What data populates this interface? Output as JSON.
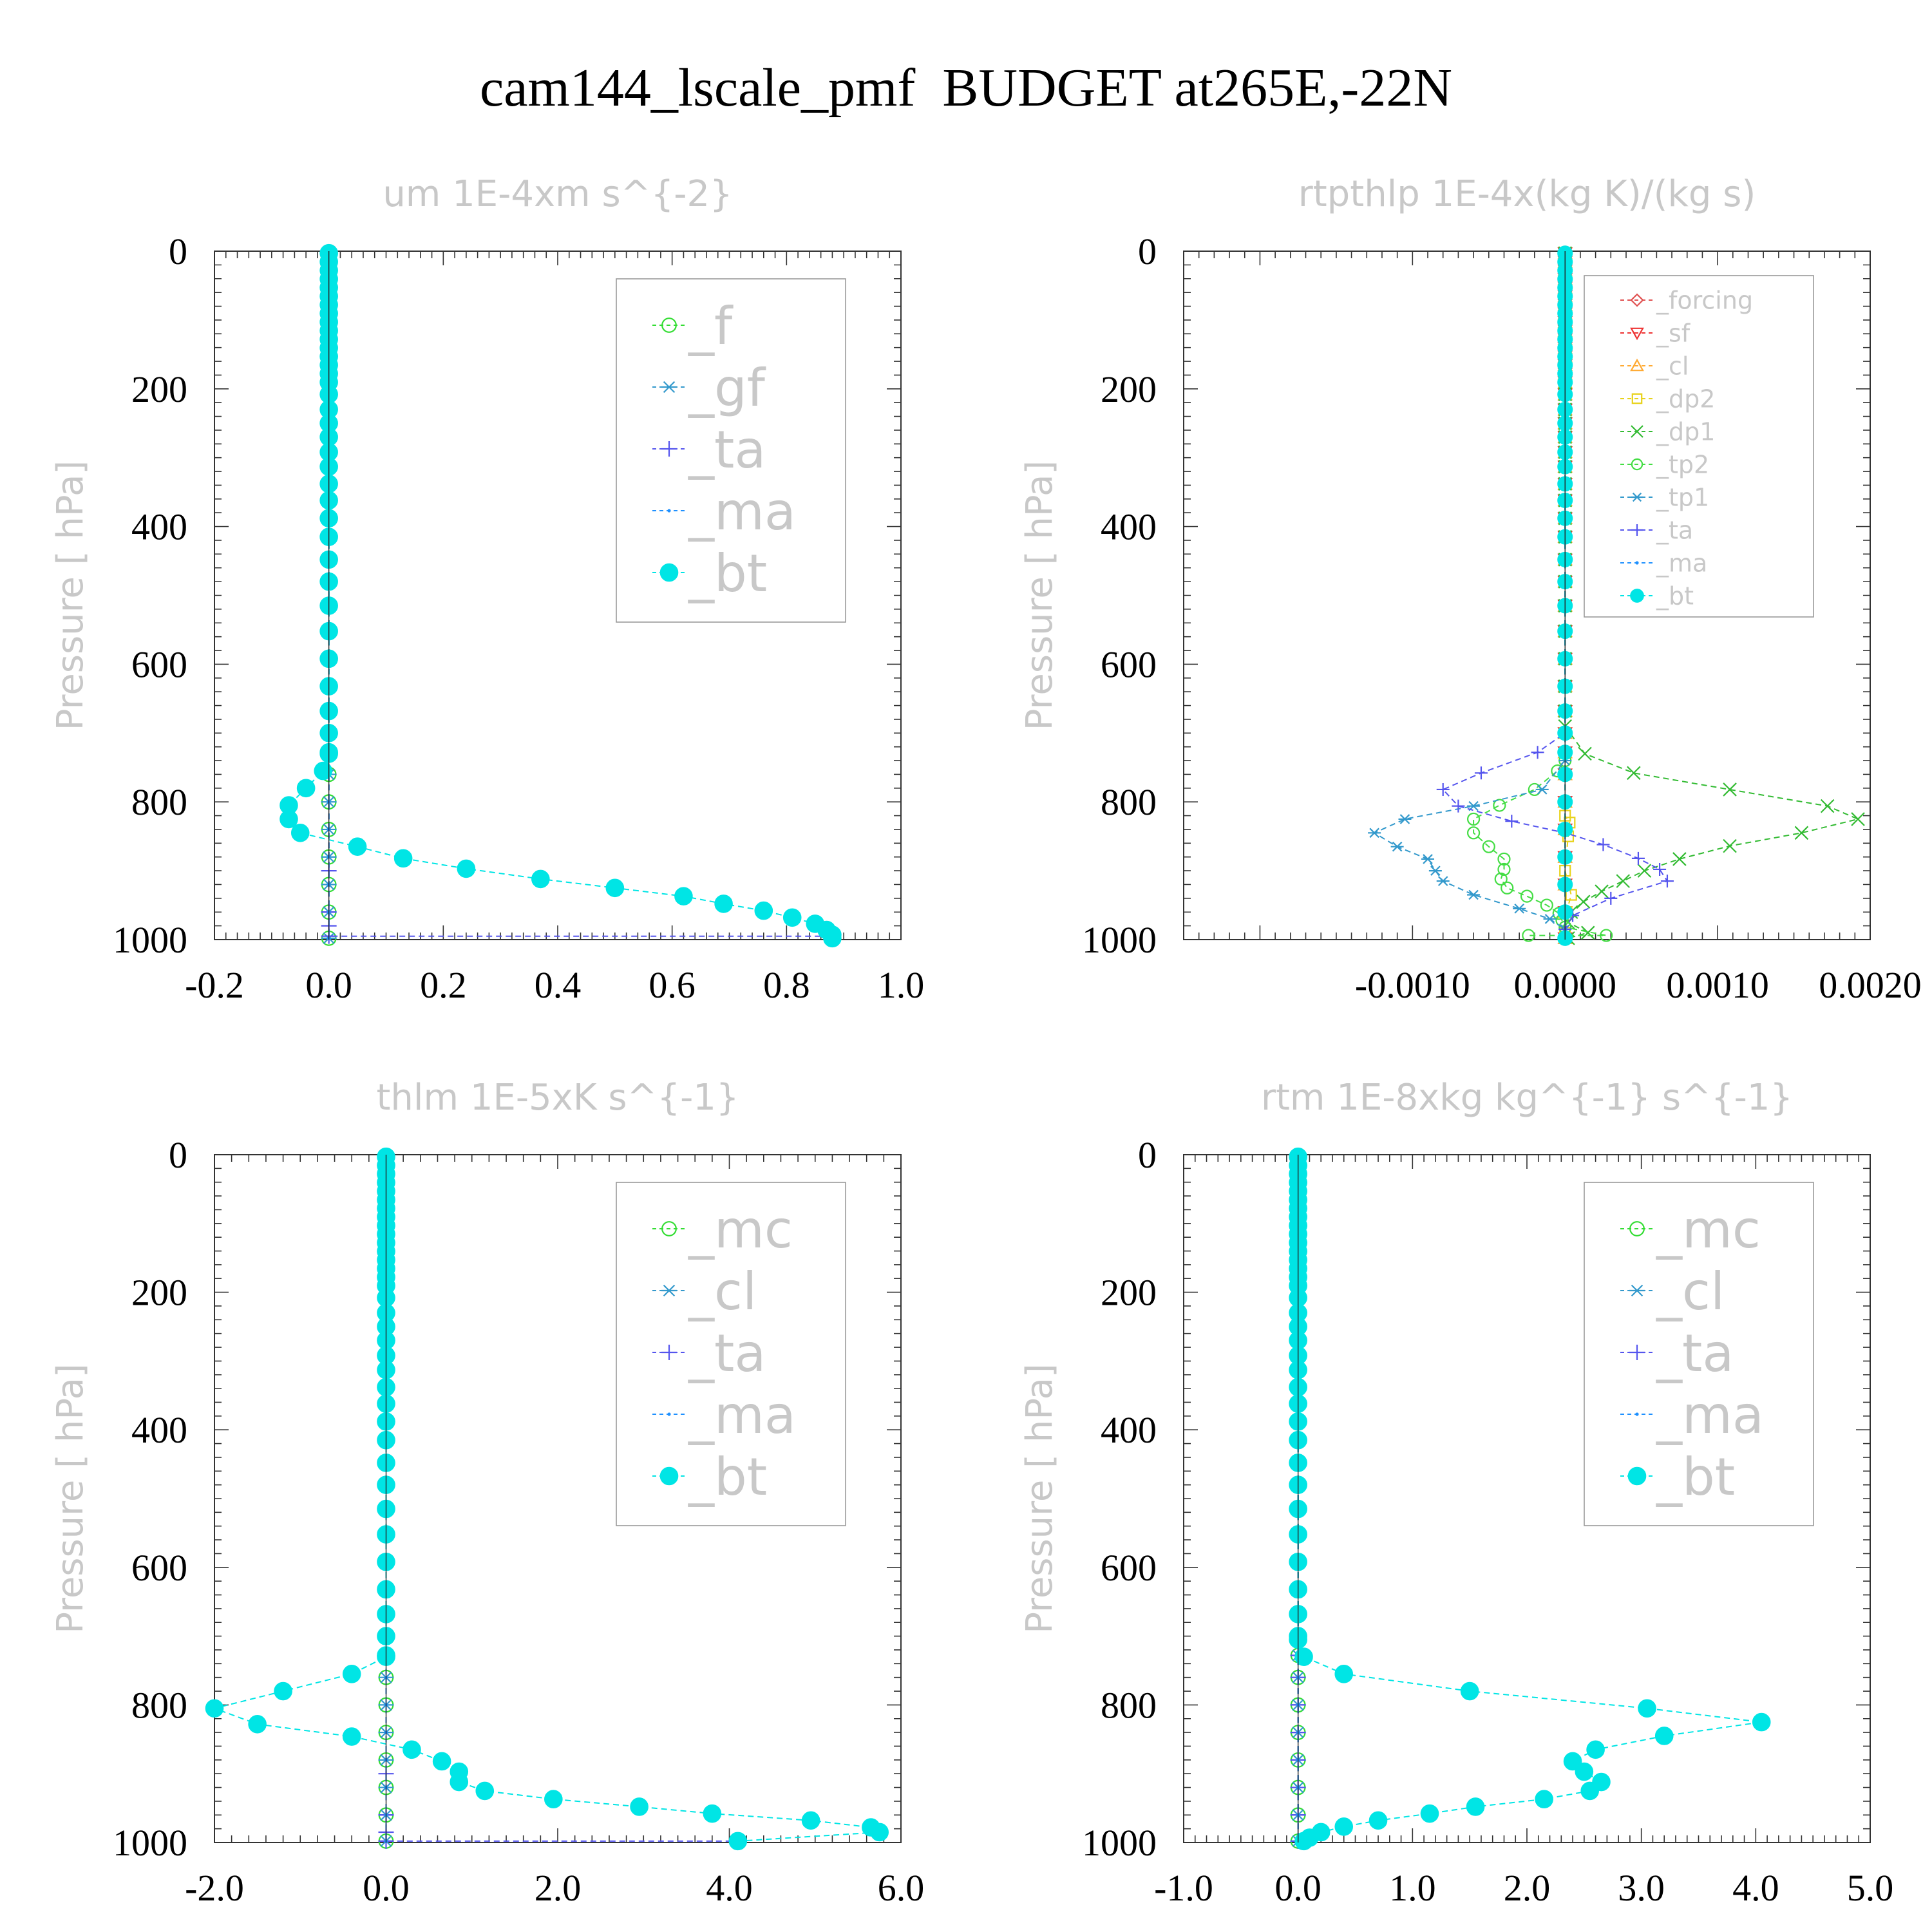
{
  "figure_title": "cam144_lscale_pmf  BUDGET at265E,-22N",
  "chart_data": [
    {
      "type": "line",
      "title": "um  1E-4xm s^{-2}",
      "ylabel": "Pressure [ hPa]",
      "xlabel": "",
      "xlim": [
        -0.2,
        1.0
      ],
      "ylim": [
        1000,
        0
      ],
      "y_inverted": true,
      "xticks": [
        "-0.2",
        "0.0",
        "0.2",
        "0.4",
        "0.6",
        "0.8",
        "1.0"
      ],
      "yticks": [
        "0",
        "200",
        "400",
        "600",
        "800",
        "1000"
      ],
      "legend_position": "upper-right",
      "grid": false,
      "series": [
        {
          "name": "_f",
          "color": "#33dd33",
          "marker": "circle-open",
          "bands": [
            [
              0.0,
              0.0,
              0.0
            ]
          ]
        },
        {
          "name": "_gf",
          "color": "#3399cc",
          "marker": "asterisk",
          "bands": [
            [
              0.0,
              0.0,
              0.0
            ]
          ]
        },
        {
          "name": "_ta",
          "color": "#5555ee",
          "marker": "plus",
          "bands": [
            [
              0.0,
              0.0,
              0.0
            ]
          ],
          "points": [
            [
              0.0,
              900
            ],
            [
              0.0,
              960
            ],
            [
              0.0,
              980
            ],
            [
              0.0,
              995
            ],
            [
              0.88,
              995
            ]
          ]
        },
        {
          "name": "_ma",
          "color": "#1e90ff",
          "marker": "dot",
          "bands": [
            [
              0.0,
              0.0,
              0.0
            ]
          ]
        },
        {
          "name": "_bt",
          "color": "#00e5e5",
          "marker": "filled-circle",
          "bands": [
            [
              0.0,
              0.0,
              0.0
            ]
          ],
          "points": [
            [
              0.0,
              730
            ],
            [
              -0.01,
              755
            ],
            [
              -0.04,
              780
            ],
            [
              -0.07,
              805
            ],
            [
              -0.07,
              825
            ],
            [
              -0.05,
              845
            ],
            [
              0.05,
              865
            ],
            [
              0.13,
              882
            ],
            [
              0.24,
              897
            ],
            [
              0.37,
              912
            ],
            [
              0.5,
              925
            ],
            [
              0.62,
              937
            ],
            [
              0.69,
              948
            ],
            [
              0.76,
              958
            ],
            [
              0.81,
              968
            ],
            [
              0.85,
              977
            ],
            [
              0.87,
              986
            ],
            [
              0.88,
              993
            ],
            [
              0.88,
              998
            ]
          ]
        }
      ]
    },
    {
      "type": "line",
      "title": "rtpthlp  1E-4x(kg K)/(kg s)",
      "ylabel": "Pressure [ hPa]",
      "xlabel": "",
      "xlim": [
        -0.0025,
        0.002
      ],
      "ylim": [
        1000,
        0
      ],
      "y_inverted": true,
      "xticks": [
        "-0.0010",
        "0.0000",
        "0.0010",
        "0.0020"
      ],
      "yticks": [
        "0",
        "200",
        "400",
        "600",
        "800",
        "1000"
      ],
      "legend_position": "upper-right",
      "grid": false,
      "series": [
        {
          "name": "_forcing",
          "color": "#e05050",
          "marker": "diamond-open",
          "bands": [
            [
              0.0,
              0.0,
              0.0
            ]
          ]
        },
        {
          "name": "_sf",
          "color": "#ee3333",
          "marker": "triangle-down",
          "bands": [
            [
              0.0,
              0.0,
              0.0
            ]
          ]
        },
        {
          "name": "_cl",
          "color": "#ffaa33",
          "marker": "triangle-up",
          "bands": [
            [
              0.0,
              0.0,
              0.0
            ]
          ]
        },
        {
          "name": "_dp2",
          "color": "#e8d21a",
          "marker": "square-open",
          "bands": [
            [
              0.0,
              0.0,
              0.0
            ]
          ],
          "points": [
            [
              0.0,
              700
            ],
            [
              0.0,
              820
            ],
            [
              3e-05,
              830
            ],
            [
              2e-05,
              850
            ],
            [
              0.0,
              900
            ],
            [
              4e-05,
              935
            ],
            [
              1e-05,
              960
            ],
            [
              0.0,
              990
            ]
          ]
        },
        {
          "name": "_dp1",
          "color": "#33bb33",
          "marker": "cross",
          "bands": [
            [
              0.0,
              0.0,
              0.0
            ]
          ],
          "points": [
            [
              0.0,
              690
            ],
            [
              0.00013,
              730
            ],
            [
              0.00045,
              758
            ],
            [
              0.00108,
              782
            ],
            [
              0.00172,
              806
            ],
            [
              0.00192,
              825
            ],
            [
              0.00155,
              845
            ],
            [
              0.00108,
              864
            ],
            [
              0.00075,
              883
            ],
            [
              0.00052,
              900
            ],
            [
              0.00038,
              915
            ],
            [
              0.00024,
              930
            ],
            [
              0.00012,
              945
            ],
            [
              4e-05,
              960
            ],
            [
              2e-05,
              975
            ],
            [
              0.00015,
              990
            ],
            [
              2e-05,
              998
            ]
          ]
        },
        {
          "name": "_tp2",
          "color": "#44dd44",
          "marker": "circle-open",
          "bands": [
            [
              0.0,
              0.0,
              0.0
            ]
          ],
          "points": [
            [
              0.0,
              740
            ],
            [
              -5e-05,
              755
            ],
            [
              -0.0002,
              782
            ],
            [
              -0.00043,
              805
            ],
            [
              -0.0006,
              825
            ],
            [
              -0.0006,
              845
            ],
            [
              -0.0005,
              865
            ],
            [
              -0.0004,
              883
            ],
            [
              -0.0004,
              898
            ],
            [
              -0.00042,
              912
            ],
            [
              -0.00038,
              925
            ],
            [
              -0.00025,
              937
            ],
            [
              -0.00012,
              950
            ],
            [
              -4e-05,
              962
            ],
            [
              -2e-05,
              972
            ],
            [
              0.0,
              982
            ],
            [
              0.00027,
              994
            ],
            [
              -0.00024,
              994
            ]
          ]
        },
        {
          "name": "_tp1",
          "color": "#3399cc",
          "marker": "asterisk",
          "bands": [
            [
              0.0,
              0.0,
              0.0
            ]
          ],
          "points": [
            [
              0.0,
              740
            ],
            [
              -0.00015,
              782
            ],
            [
              -0.0006,
              806
            ],
            [
              -0.00105,
              825
            ],
            [
              -0.00125,
              845
            ],
            [
              -0.0011,
              865
            ],
            [
              -0.0009,
              883
            ],
            [
              -0.00085,
              900
            ],
            [
              -0.0008,
              915
            ],
            [
              -0.0006,
              935
            ],
            [
              -0.0003,
              955
            ],
            [
              -0.0001,
              970
            ],
            [
              0.0,
              985
            ],
            [
              0.0,
              998
            ]
          ]
        },
        {
          "name": "_ta",
          "color": "#5555ee",
          "marker": "plus",
          "bands": [
            [
              0.0,
              0.0,
              0.0
            ]
          ],
          "points": [
            [
              0.0,
              700
            ],
            [
              -0.00018,
              728
            ],
            [
              -0.00055,
              758
            ],
            [
              -0.0008,
              782
            ],
            [
              -0.0007,
              806
            ],
            [
              -0.00035,
              828
            ],
            [
              0.0,
              845
            ],
            [
              0.00025,
              862
            ],
            [
              0.00048,
              882
            ],
            [
              0.00062,
              898
            ],
            [
              0.00067,
              915
            ],
            [
              0.0003,
              940
            ],
            [
              5e-05,
              965
            ],
            [
              0.0,
              985
            ]
          ]
        },
        {
          "name": "_ma",
          "color": "#1e90ff",
          "marker": "dot",
          "bands": [
            [
              0.0,
              0.0,
              0.0
            ]
          ]
        },
        {
          "name": "_bt",
          "color": "#00e5e5",
          "marker": "filled-circle",
          "bands": [
            [
              0.0,
              0.0,
              0.0
            ]
          ]
        }
      ]
    },
    {
      "type": "line",
      "title": "thlm  1E-5xK s^{-1}",
      "ylabel": "Pressure [ hPa]",
      "xlabel": "",
      "xlim": [
        -2.0,
        6.0
      ],
      "ylim": [
        1000,
        0
      ],
      "y_inverted": true,
      "xticks": [
        "-2.0",
        "0.0",
        "2.0",
        "4.0",
        "6.0"
      ],
      "yticks": [
        "0",
        "200",
        "400",
        "600",
        "800",
        "1000"
      ],
      "legend_position": "upper-right",
      "grid": false,
      "series": [
        {
          "name": "_mc",
          "color": "#33dd33",
          "marker": "circle-open",
          "bands": [
            [
              0.0,
              0.0,
              0.0
            ]
          ]
        },
        {
          "name": "_cl",
          "color": "#3399cc",
          "marker": "asterisk",
          "bands": [
            [
              0.0,
              0.0,
              0.0
            ]
          ]
        },
        {
          "name": "_ta",
          "color": "#5555ee",
          "marker": "plus",
          "bands": [
            [
              0.0,
              0.0,
              0.0
            ]
          ],
          "points": [
            [
              0.0,
              900
            ],
            [
              0.0,
              960
            ],
            [
              0.0,
              985
            ],
            [
              0.0,
              998
            ],
            [
              4.1,
              998
            ]
          ]
        },
        {
          "name": "_ma",
          "color": "#1e90ff",
          "marker": "dot",
          "bands": [
            [
              0.0,
              0.0,
              0.0
            ]
          ]
        },
        {
          "name": "_bt",
          "color": "#00e5e5",
          "marker": "filled-circle",
          "bands": [
            [
              0.0,
              0.0,
              0.0
            ]
          ],
          "points": [
            [
              0.0,
              730
            ],
            [
              -0.4,
              755
            ],
            [
              -1.2,
              780
            ],
            [
              -2.0,
              805
            ],
            [
              -1.5,
              828
            ],
            [
              -0.4,
              846
            ],
            [
              0.3,
              865
            ],
            [
              0.65,
              882
            ],
            [
              0.85,
              897
            ],
            [
              0.85,
              912
            ],
            [
              1.15,
              925
            ],
            [
              1.95,
              937
            ],
            [
              2.95,
              948
            ],
            [
              3.8,
              958
            ],
            [
              4.95,
              968
            ],
            [
              5.65,
              978
            ],
            [
              5.75,
              985
            ],
            [
              4.1,
              998
            ]
          ]
        }
      ]
    },
    {
      "type": "line",
      "title": "rtm  1E-8xkg kg^{-1} s^{-1}",
      "ylabel": "Pressure [ hPa]",
      "xlabel": "",
      "xlim": [
        -1.0,
        5.0
      ],
      "ylim": [
        1000,
        0
      ],
      "y_inverted": true,
      "xticks": [
        "-1.0",
        "0.0",
        "1.0",
        "2.0",
        "3.0",
        "4.0",
        "5.0"
      ],
      "yticks": [
        "0",
        "200",
        "400",
        "600",
        "800",
        "1000"
      ],
      "legend_position": "upper-right",
      "grid": false,
      "series": [
        {
          "name": "_mc",
          "color": "#33dd33",
          "marker": "circle-open",
          "bands": [
            [
              0.0,
              0.0,
              0.0
            ]
          ]
        },
        {
          "name": "_cl",
          "color": "#3399cc",
          "marker": "asterisk",
          "bands": [
            [
              0.0,
              0.0,
              0.0
            ]
          ]
        },
        {
          "name": "_ta",
          "color": "#5555ee",
          "marker": "plus",
          "bands": [
            [
              0.0,
              0.0,
              0.0
            ]
          ]
        },
        {
          "name": "_ma",
          "color": "#1e90ff",
          "marker": "dot",
          "bands": [
            [
              0.0,
              0.0,
              0.0
            ]
          ]
        },
        {
          "name": "_bt",
          "color": "#00e5e5",
          "marker": "filled-circle",
          "bands": [
            [
              0.0,
              0.0,
              0.0
            ]
          ],
          "points": [
            [
              0.0,
              705
            ],
            [
              0.05,
              730
            ],
            [
              0.4,
              755
            ],
            [
              1.5,
              780
            ],
            [
              3.05,
              805
            ],
            [
              4.05,
              825
            ],
            [
              3.2,
              845
            ],
            [
              2.6,
              865
            ],
            [
              2.4,
              882
            ],
            [
              2.5,
              897
            ],
            [
              2.65,
              912
            ],
            [
              2.55,
              925
            ],
            [
              2.15,
              937
            ],
            [
              1.55,
              948
            ],
            [
              1.15,
              958
            ],
            [
              0.7,
              968
            ],
            [
              0.4,
              977
            ],
            [
              0.2,
              985
            ],
            [
              0.1,
              993
            ],
            [
              0.05,
              998
            ]
          ]
        }
      ]
    }
  ]
}
